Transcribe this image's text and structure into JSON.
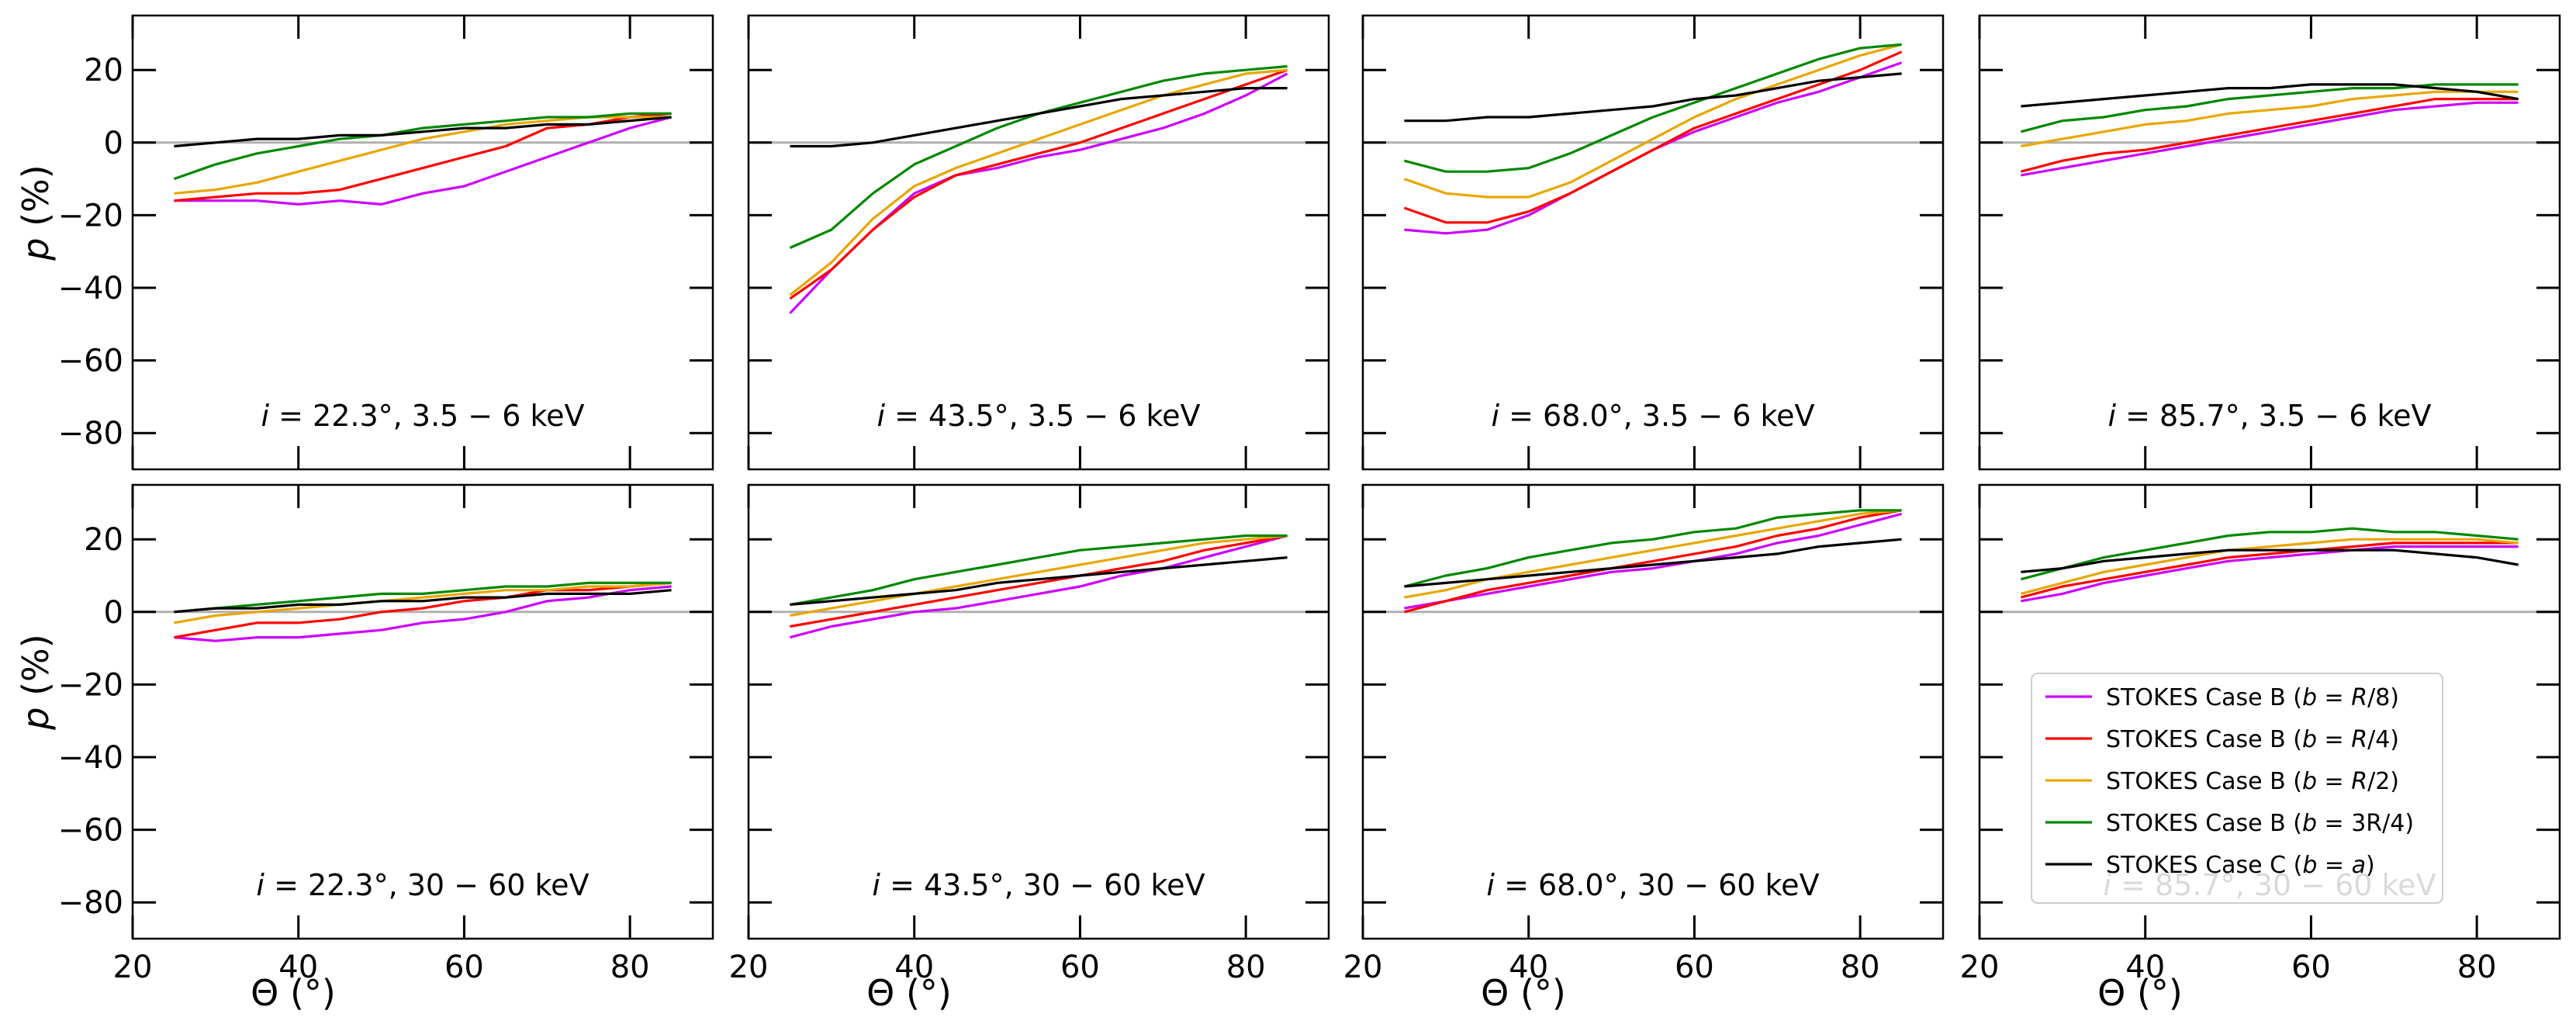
{
  "figure": {
    "ylabel": "p (%)",
    "xlabel": "Θ (°)"
  },
  "chart_data": [
    {
      "type": "line",
      "row": 0,
      "col": 0,
      "annotation": "i = 22.3°, 3.5 − 6 keV",
      "x": [
        25,
        30,
        35,
        40,
        45,
        50,
        55,
        60,
        65,
        70,
        75,
        80,
        85
      ],
      "series": [
        {
          "name": "STOKES Case B (b = R/8)",
          "color": "#cc00ff",
          "values": [
            -16,
            -16,
            -16,
            -17,
            -16,
            -17,
            -14,
            -12,
            -8,
            -4,
            0,
            4,
            7
          ]
        },
        {
          "name": "STOKES Case B (b = R/4)",
          "color": "#ff0000",
          "values": [
            -16,
            -15,
            -14,
            -14,
            -13,
            -10,
            -7,
            -4,
            -1,
            4,
            5,
            7,
            8
          ]
        },
        {
          "name": "STOKES Case B (b = R/2)",
          "color": "#e8a600",
          "values": [
            -14,
            -13,
            -11,
            -8,
            -5,
            -2,
            1,
            3,
            5,
            6,
            7,
            7,
            7
          ]
        },
        {
          "name": "STOKES Case B (b = 3R/4)",
          "color": "#008800",
          "values": [
            -10,
            -6,
            -3,
            -1,
            1,
            2,
            4,
            5,
            6,
            7,
            7,
            8,
            8
          ]
        },
        {
          "name": "STOKES Case C (b = a)",
          "color": "#000000",
          "values": [
            -1,
            0,
            1,
            1,
            2,
            2,
            3,
            4,
            4,
            5,
            5,
            6,
            7
          ]
        }
      ]
    },
    {
      "type": "line",
      "row": 0,
      "col": 1,
      "annotation": "i = 43.5°, 3.5 − 6 keV",
      "x": [
        25,
        30,
        35,
        40,
        45,
        50,
        55,
        60,
        65,
        70,
        75,
        80,
        85
      ],
      "series": [
        {
          "name": "STOKES Case B (b = R/8)",
          "color": "#cc00ff",
          "values": [
            -47,
            -35,
            -24,
            -14,
            -9,
            -7,
            -4,
            -2,
            1,
            4,
            8,
            13,
            19
          ]
        },
        {
          "name": "STOKES Case B (b = R/4)",
          "color": "#ff0000",
          "values": [
            -43,
            -35,
            -24,
            -15,
            -9,
            -6,
            -3,
            0,
            4,
            8,
            12,
            16,
            20
          ]
        },
        {
          "name": "STOKES Case B (b = R/2)",
          "color": "#e8a600",
          "values": [
            -42,
            -33,
            -21,
            -12,
            -7,
            -3,
            1,
            5,
            9,
            13,
            16,
            19,
            20
          ]
        },
        {
          "name": "STOKES Case B (b = 3R/4)",
          "color": "#008800",
          "values": [
            -29,
            -24,
            -14,
            -6,
            -1,
            4,
            8,
            11,
            14,
            17,
            19,
            20,
            21
          ]
        },
        {
          "name": "STOKES Case C (b = a)",
          "color": "#000000",
          "values": [
            -1,
            -1,
            0,
            2,
            4,
            6,
            8,
            10,
            12,
            13,
            14,
            15,
            15
          ]
        }
      ]
    },
    {
      "type": "line",
      "row": 0,
      "col": 2,
      "annotation": "i = 68.0°, 3.5 − 6 keV",
      "x": [
        25,
        30,
        35,
        40,
        45,
        50,
        55,
        60,
        65,
        70,
        75,
        80,
        85
      ],
      "series": [
        {
          "name": "STOKES Case B (b = R/8)",
          "color": "#cc00ff",
          "values": [
            -24,
            -25,
            -24,
            -20,
            -14,
            -8,
            -2,
            3,
            7,
            11,
            14,
            18,
            22
          ]
        },
        {
          "name": "STOKES Case B (b = R/4)",
          "color": "#ff0000",
          "values": [
            -18,
            -22,
            -22,
            -19,
            -14,
            -8,
            -2,
            4,
            8,
            12,
            16,
            20,
            25
          ]
        },
        {
          "name": "STOKES Case B (b = R/2)",
          "color": "#e8a600",
          "values": [
            -10,
            -14,
            -15,
            -15,
            -11,
            -5,
            1,
            7,
            12,
            16,
            20,
            24,
            27
          ]
        },
        {
          "name": "STOKES Case B (b = 3R/4)",
          "color": "#008800",
          "values": [
            -5,
            -8,
            -8,
            -7,
            -3,
            2,
            7,
            11,
            15,
            19,
            23,
            26,
            27
          ]
        },
        {
          "name": "STOKES Case C (b = a)",
          "color": "#000000",
          "values": [
            6,
            6,
            7,
            7,
            8,
            9,
            10,
            12,
            13,
            15,
            17,
            18,
            19
          ]
        }
      ]
    },
    {
      "type": "line",
      "row": 0,
      "col": 3,
      "annotation": "i = 85.7°, 3.5 − 6 keV",
      "x": [
        25,
        30,
        35,
        40,
        45,
        50,
        55,
        60,
        65,
        70,
        75,
        80,
        85
      ],
      "series": [
        {
          "name": "STOKES Case B (b = R/8)",
          "color": "#cc00ff",
          "values": [
            -9,
            -7,
            -5,
            -3,
            -1,
            1,
            3,
            5,
            7,
            9,
            10,
            11,
            11
          ]
        },
        {
          "name": "STOKES Case B (b = R/4)",
          "color": "#ff0000",
          "values": [
            -8,
            -5,
            -3,
            -2,
            0,
            2,
            4,
            6,
            8,
            10,
            12,
            12,
            12
          ]
        },
        {
          "name": "STOKES Case B (b = R/2)",
          "color": "#e8a600",
          "values": [
            -1,
            1,
            3,
            5,
            6,
            8,
            9,
            10,
            12,
            13,
            14,
            14,
            14
          ]
        },
        {
          "name": "STOKES Case B (b = 3R/4)",
          "color": "#008800",
          "values": [
            3,
            6,
            7,
            9,
            10,
            12,
            13,
            14,
            15,
            15,
            16,
            16,
            16
          ]
        },
        {
          "name": "STOKES Case C (b = a)",
          "color": "#000000",
          "values": [
            10,
            11,
            12,
            13,
            14,
            15,
            15,
            16,
            16,
            16,
            15,
            14,
            12
          ]
        }
      ]
    },
    {
      "type": "line",
      "row": 1,
      "col": 0,
      "annotation": "i = 22.3°, 30 − 60 keV",
      "x": [
        25,
        30,
        35,
        40,
        45,
        50,
        55,
        60,
        65,
        70,
        75,
        80,
        85
      ],
      "series": [
        {
          "name": "STOKES Case B (b = R/8)",
          "color": "#cc00ff",
          "values": [
            -7,
            -8,
            -7,
            -7,
            -6,
            -5,
            -3,
            -2,
            0,
            3,
            4,
            6,
            7
          ]
        },
        {
          "name": "STOKES Case B (b = R/4)",
          "color": "#ff0000",
          "values": [
            -7,
            -5,
            -3,
            -3,
            -2,
            0,
            1,
            3,
            4,
            6,
            6,
            7,
            8
          ]
        },
        {
          "name": "STOKES Case B (b = R/2)",
          "color": "#e8a600",
          "values": [
            -3,
            -1,
            0,
            1,
            2,
            3,
            4,
            5,
            6,
            6,
            7,
            7,
            8
          ]
        },
        {
          "name": "STOKES Case B (b = 3R/4)",
          "color": "#008800",
          "values": [
            0,
            1,
            2,
            3,
            4,
            5,
            5,
            6,
            7,
            7,
            8,
            8,
            8
          ]
        },
        {
          "name": "STOKES Case C (b = a)",
          "color": "#000000",
          "values": [
            0,
            1,
            1,
            2,
            2,
            3,
            3,
            4,
            4,
            5,
            5,
            5,
            6
          ]
        }
      ]
    },
    {
      "type": "line",
      "row": 1,
      "col": 1,
      "annotation": "i = 43.5°, 30 − 60 keV",
      "x": [
        25,
        30,
        35,
        40,
        45,
        50,
        55,
        60,
        65,
        70,
        75,
        80,
        85
      ],
      "series": [
        {
          "name": "STOKES Case B (b = R/8)",
          "color": "#cc00ff",
          "values": [
            -7,
            -4,
            -2,
            0,
            1,
            3,
            5,
            7,
            10,
            12,
            15,
            18,
            21
          ]
        },
        {
          "name": "STOKES Case B (b = R/4)",
          "color": "#ff0000",
          "values": [
            -4,
            -2,
            0,
            2,
            4,
            6,
            8,
            10,
            12,
            14,
            17,
            19,
            21
          ]
        },
        {
          "name": "STOKES Case B (b = R/2)",
          "color": "#e8a600",
          "values": [
            -1,
            1,
            3,
            5,
            7,
            9,
            11,
            13,
            15,
            17,
            19,
            20,
            21
          ]
        },
        {
          "name": "STOKES Case B (b = 3R/4)",
          "color": "#008800",
          "values": [
            2,
            4,
            6,
            9,
            11,
            13,
            15,
            17,
            18,
            19,
            20,
            21,
            21
          ]
        },
        {
          "name": "STOKES Case C (b = a)",
          "color": "#000000",
          "values": [
            2,
            3,
            4,
            5,
            6,
            8,
            9,
            10,
            11,
            12,
            13,
            14,
            15
          ]
        }
      ]
    },
    {
      "type": "line",
      "row": 1,
      "col": 2,
      "annotation": "i = 68.0°, 30 − 60 keV",
      "x": [
        25,
        30,
        35,
        40,
        45,
        50,
        55,
        60,
        65,
        70,
        75,
        80,
        85
      ],
      "series": [
        {
          "name": "STOKES Case B (b = R/8)",
          "color": "#cc00ff",
          "values": [
            1,
            3,
            5,
            7,
            9,
            11,
            12,
            14,
            16,
            19,
            21,
            24,
            27
          ]
        },
        {
          "name": "STOKES Case B (b = R/4)",
          "color": "#ff0000",
          "values": [
            0,
            3,
            6,
            8,
            10,
            12,
            14,
            16,
            18,
            21,
            23,
            26,
            28
          ]
        },
        {
          "name": "STOKES Case B (b = R/2)",
          "color": "#e8a600",
          "values": [
            4,
            6,
            9,
            11,
            13,
            15,
            17,
            19,
            21,
            23,
            25,
            27,
            28
          ]
        },
        {
          "name": "STOKES Case B (b = 3R/4)",
          "color": "#008800",
          "values": [
            7,
            10,
            12,
            15,
            17,
            19,
            20,
            22,
            23,
            26,
            27,
            28,
            28
          ]
        },
        {
          "name": "STOKES Case C (b = a)",
          "color": "#000000",
          "values": [
            7,
            8,
            9,
            10,
            11,
            12,
            13,
            14,
            15,
            16,
            18,
            19,
            20
          ]
        }
      ]
    },
    {
      "type": "line",
      "row": 1,
      "col": 3,
      "annotation": "i = 85.7°, 30 − 60 keV",
      "x": [
        25,
        30,
        35,
        40,
        45,
        50,
        55,
        60,
        65,
        70,
        75,
        80,
        85
      ],
      "series": [
        {
          "name": "STOKES Case B (b = R/8)",
          "color": "#cc00ff",
          "values": [
            3,
            5,
            8,
            10,
            12,
            14,
            15,
            16,
            17,
            18,
            18,
            18,
            18
          ]
        },
        {
          "name": "STOKES Case B (b = R/4)",
          "color": "#ff0000",
          "values": [
            4,
            7,
            9,
            11,
            13,
            15,
            16,
            17,
            18,
            19,
            19,
            19,
            19
          ]
        },
        {
          "name": "STOKES Case B (b = R/2)",
          "color": "#e8a600",
          "values": [
            5,
            8,
            11,
            13,
            15,
            17,
            18,
            19,
            20,
            20,
            20,
            20,
            19
          ]
        },
        {
          "name": "STOKES Case B (b = 3R/4)",
          "color": "#008800",
          "values": [
            9,
            12,
            15,
            17,
            19,
            21,
            22,
            22,
            23,
            22,
            22,
            21,
            20
          ]
        },
        {
          "name": "STOKES Case C (b = a)",
          "color": "#000000",
          "values": [
            11,
            12,
            14,
            15,
            16,
            17,
            17,
            17,
            17,
            17,
            16,
            15,
            13
          ]
        }
      ]
    }
  ],
  "axes": {
    "xlim": [
      20,
      90
    ],
    "ylim": [
      -90,
      35
    ],
    "xticks": [
      20,
      40,
      60,
      80
    ],
    "yticks": [
      -80,
      -60,
      -40,
      -20,
      0,
      20
    ],
    "xtick_labels": [
      "20",
      "40",
      "60",
      "80"
    ],
    "ytick_labels": [
      "−80",
      "−60",
      "−40",
      "−20",
      "0",
      "20"
    ]
  },
  "legend": {
    "panel": "row 1, col 3",
    "placement": "lower-left",
    "entries": [
      {
        "label": "STOKES Case B (b = R/8)",
        "color": "#cc00ff"
      },
      {
        "label": "STOKES Case B (b = R/4)",
        "color": "#ff0000"
      },
      {
        "label": "STOKES Case B (b = R/2)",
        "color": "#e8a600"
      },
      {
        "label": "STOKES Case B (b = 3R/4)",
        "color": "#008800"
      },
      {
        "label": "STOKES Case C (b = a)",
        "color": "#000000"
      }
    ]
  }
}
